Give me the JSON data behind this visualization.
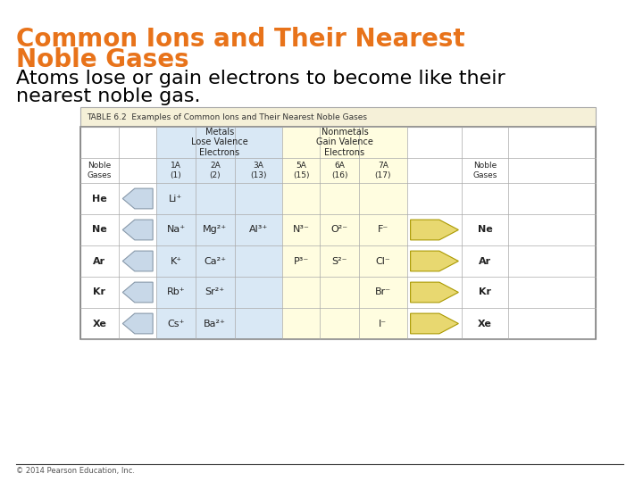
{
  "title_line1": "Common Ions and Their Nearest",
  "title_line2": "Noble Gases",
  "subtitle": "Atoms lose or gain electrons to become like their\nnearest noble gas.",
  "table_title": "TABLE 6.2  Examples of Common Ions and Their Nearest Noble Gases",
  "title_color": "#E8731A",
  "subtitle_color": "#000000",
  "bg_color": "#FFFFFF",
  "table_header_bg": "#F5F0D8",
  "metals_bg": "#D9E8F5",
  "nonmetals_bg": "#FFFDE0",
  "metals_label": "Metals\nLose Valence\nElectrons",
  "nonmetals_label": "Nonmetals\nGain Valence\nElectrons",
  "col_headers": [
    "Noble\nGases",
    "",
    "1A\n(1)",
    "2A\n(2)",
    "3A\n(13)",
    "5A\n(15)",
    "6A\n(16)",
    "7A\n(17)",
    "",
    "Noble\nGases"
  ],
  "rows": [
    {
      "noble_gas_left": "He",
      "col1": "Li⁺",
      "col2": "",
      "col3": "",
      "col4": "",
      "col5": "",
      "col6": "",
      "noble_gas_right": ""
    },
    {
      "noble_gas_left": "Ne",
      "col1": "Na⁺",
      "col2": "Mg²⁺",
      "col3": "Al³⁺",
      "col4": "N³⁻",
      "col5": "O²⁻",
      "col6": "F⁻",
      "noble_gas_right": "Ne"
    },
    {
      "noble_gas_left": "Ar",
      "col1": "K⁺",
      "col2": "Ca²⁺",
      "col3": "",
      "col4": "P³⁻",
      "col5": "S²⁻",
      "col6": "Cl⁻",
      "noble_gas_right": "Ar"
    },
    {
      "noble_gas_left": "Kr",
      "col1": "Rb⁺",
      "col2": "Sr²⁺",
      "col3": "",
      "col4": "",
      "col5": "",
      "col6": "Br⁻",
      "noble_gas_right": "Kr"
    },
    {
      "noble_gas_left": "Xe",
      "col1": "Cs⁺",
      "col2": "Ba²⁺",
      "col3": "",
      "col4": "",
      "col5": "",
      "col6": "I⁻",
      "noble_gas_right": "Xe"
    }
  ],
  "footer": "© 2014 Pearson Education, Inc.",
  "arrow_left_color": "#C8D8E8",
  "arrow_right_color": "#E8D870"
}
